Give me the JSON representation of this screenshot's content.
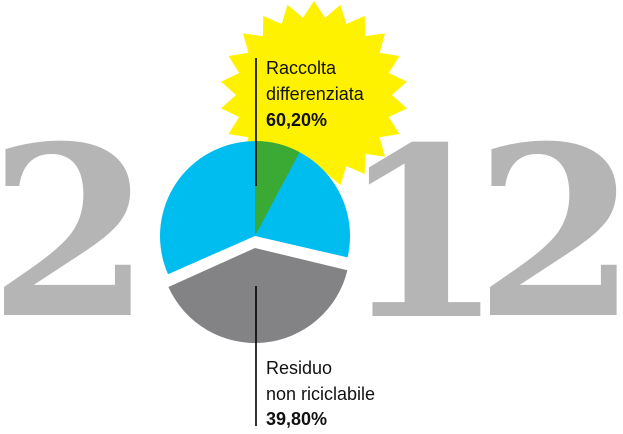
{
  "year": {
    "d1": "2",
    "d3": "1",
    "d4": "2"
  },
  "colors": {
    "digit": "#b5b5b5",
    "starburst": "#fff200",
    "recycled": "#00bdf0",
    "residual": "#838385",
    "green_accent": "#3aaa35",
    "line": "#000000"
  },
  "chart_data": {
    "type": "pie",
    "series": [
      {
        "name": "Raccolta differenziata",
        "label_lines": [
          "Raccolta",
          "differenziata"
        ],
        "value": 60.2,
        "value_label": "60,20%",
        "color": "#00bdf0"
      },
      {
        "name": "Residuo non riciclabile",
        "label_lines": [
          "Residuo",
          "non riciclabile"
        ],
        "value": 39.8,
        "value_label": "39,80%",
        "color": "#838385"
      }
    ]
  }
}
